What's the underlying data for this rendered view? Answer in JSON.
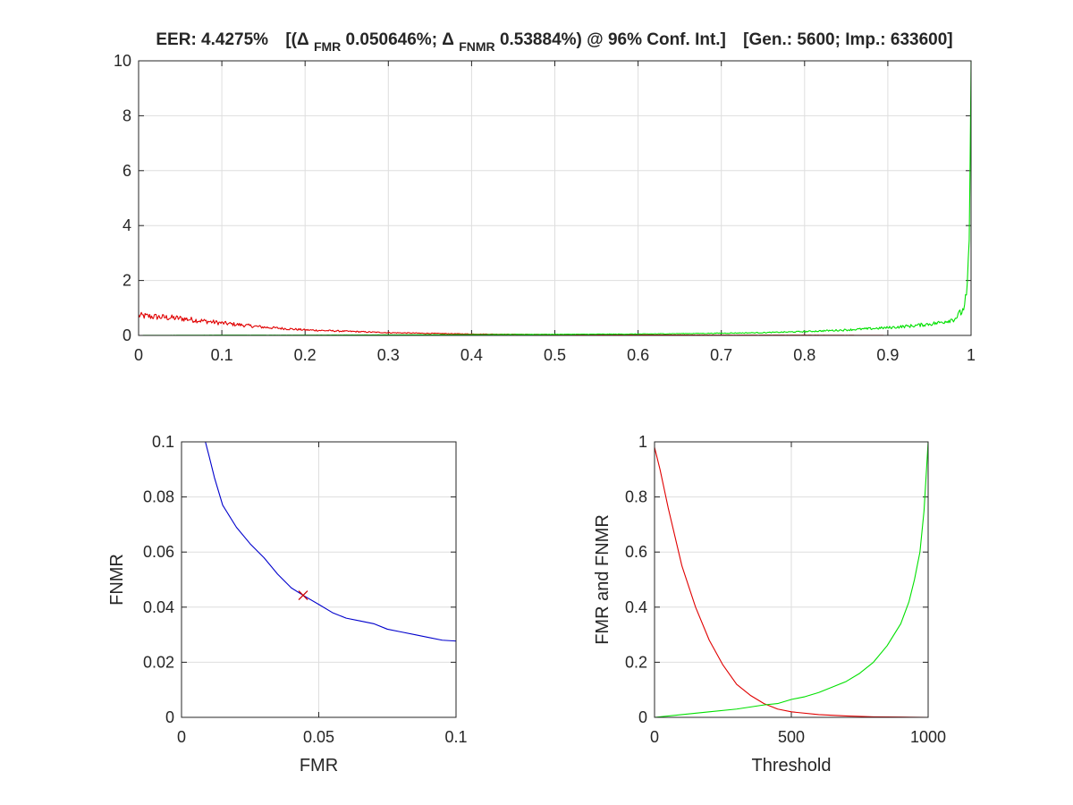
{
  "figure": {
    "title": {
      "eer": "EER: 4.4275%",
      "open": "[(Δ",
      "fmr_sub": "FMR",
      "fmr_val": " 0.050646%; Δ",
      "fnmr_sub": "FNMR",
      "fnmr_val": " 0.53884%) @ 96% Conf. Int.]",
      "counts": "[Gen.: 5600; Imp.: 633600]"
    }
  },
  "colors": {
    "red": "#e00000",
    "green": "#00e000",
    "blue": "#0000cc",
    "axis": "#262626",
    "grid": "#dedede",
    "marker": "#cc0000"
  },
  "chart_data": [
    {
      "type": "line",
      "title": "",
      "xlabel": "",
      "ylabel": "",
      "xlim": [
        0,
        1
      ],
      "ylim": [
        0,
        10
      ],
      "x_ticks": [
        "0",
        "0.1",
        "0.2",
        "0.3",
        "0.4",
        "0.5",
        "0.6",
        "0.7",
        "0.8",
        "0.9",
        "1"
      ],
      "y_ticks": [
        "0",
        "2",
        "4",
        "6",
        "8",
        "10"
      ],
      "grid": true,
      "series": [
        {
          "color": "red",
          "x": [
            0,
            0.05,
            0.1,
            0.15,
            0.2,
            0.3,
            0.4,
            0.5,
            0.6,
            0.7,
            0.8,
            0.9,
            1.0
          ],
          "values": [
            0.72,
            0.62,
            0.45,
            0.3,
            0.2,
            0.1,
            0.05,
            0.03,
            0.02,
            0.01,
            0.01,
            0.0,
            0.0
          ]
        },
        {
          "color": "green",
          "x": [
            0,
            0.1,
            0.2,
            0.3,
            0.4,
            0.5,
            0.6,
            0.7,
            0.75,
            0.8,
            0.85,
            0.9,
            0.93,
            0.96,
            0.98,
            0.99,
            0.995,
            0.998,
            1.0
          ],
          "values": [
            0.0,
            0.01,
            0.01,
            0.02,
            0.03,
            0.04,
            0.05,
            0.08,
            0.1,
            0.14,
            0.2,
            0.28,
            0.35,
            0.45,
            0.6,
            0.9,
            1.5,
            3.5,
            10.0
          ]
        }
      ]
    },
    {
      "type": "line",
      "title": "",
      "xlabel": "FMR",
      "ylabel": "FNMR",
      "xlim": [
        0,
        0.1
      ],
      "ylim": [
        0,
        0.1
      ],
      "x_ticks": [
        "0",
        "0.05",
        "0.1"
      ],
      "y_ticks": [
        "0",
        "0.02",
        "0.04",
        "0.06",
        "0.08",
        "0.1"
      ],
      "grid": true,
      "series": [
        {
          "color": "blue",
          "x": [
            0.0087,
            0.01,
            0.012,
            0.015,
            0.02,
            0.025,
            0.03,
            0.035,
            0.04,
            0.0443,
            0.05,
            0.055,
            0.06,
            0.065,
            0.07,
            0.075,
            0.08,
            0.085,
            0.09,
            0.095,
            0.1
          ],
          "values": [
            0.1,
            0.095,
            0.087,
            0.077,
            0.069,
            0.063,
            0.058,
            0.052,
            0.047,
            0.0443,
            0.041,
            0.038,
            0.036,
            0.035,
            0.034,
            0.032,
            0.031,
            0.03,
            0.029,
            0.028,
            0.0277
          ]
        }
      ],
      "eer_marker": {
        "x": 0.0443,
        "y": 0.0443,
        "color": "marker"
      }
    },
    {
      "type": "line",
      "title": "",
      "xlabel": "Threshold",
      "ylabel": "FMR and FNMR",
      "xlim": [
        0,
        1000
      ],
      "ylim": [
        0,
        1
      ],
      "x_ticks": [
        "0",
        "500",
        "1000"
      ],
      "y_ticks": [
        "0",
        "0.2",
        "0.4",
        "0.6",
        "0.8",
        "1"
      ],
      "grid": true,
      "series": [
        {
          "color": "red",
          "x": [
            0,
            20,
            50,
            100,
            150,
            200,
            250,
            300,
            350,
            400,
            450,
            500,
            600,
            700,
            800,
            900,
            1000
          ],
          "values": [
            0.98,
            0.9,
            0.76,
            0.55,
            0.4,
            0.28,
            0.19,
            0.12,
            0.08,
            0.05,
            0.03,
            0.02,
            0.01,
            0.005,
            0.002,
            0.001,
            0.0
          ]
        },
        {
          "color": "green",
          "x": [
            0,
            100,
            200,
            300,
            400,
            450,
            500,
            550,
            600,
            650,
            700,
            750,
            800,
            850,
            900,
            930,
            950,
            970,
            985,
            1000
          ],
          "values": [
            0.0,
            0.01,
            0.02,
            0.03,
            0.045,
            0.05,
            0.065,
            0.075,
            0.09,
            0.11,
            0.13,
            0.16,
            0.2,
            0.26,
            0.34,
            0.42,
            0.5,
            0.6,
            0.75,
            1.0
          ]
        }
      ]
    }
  ]
}
